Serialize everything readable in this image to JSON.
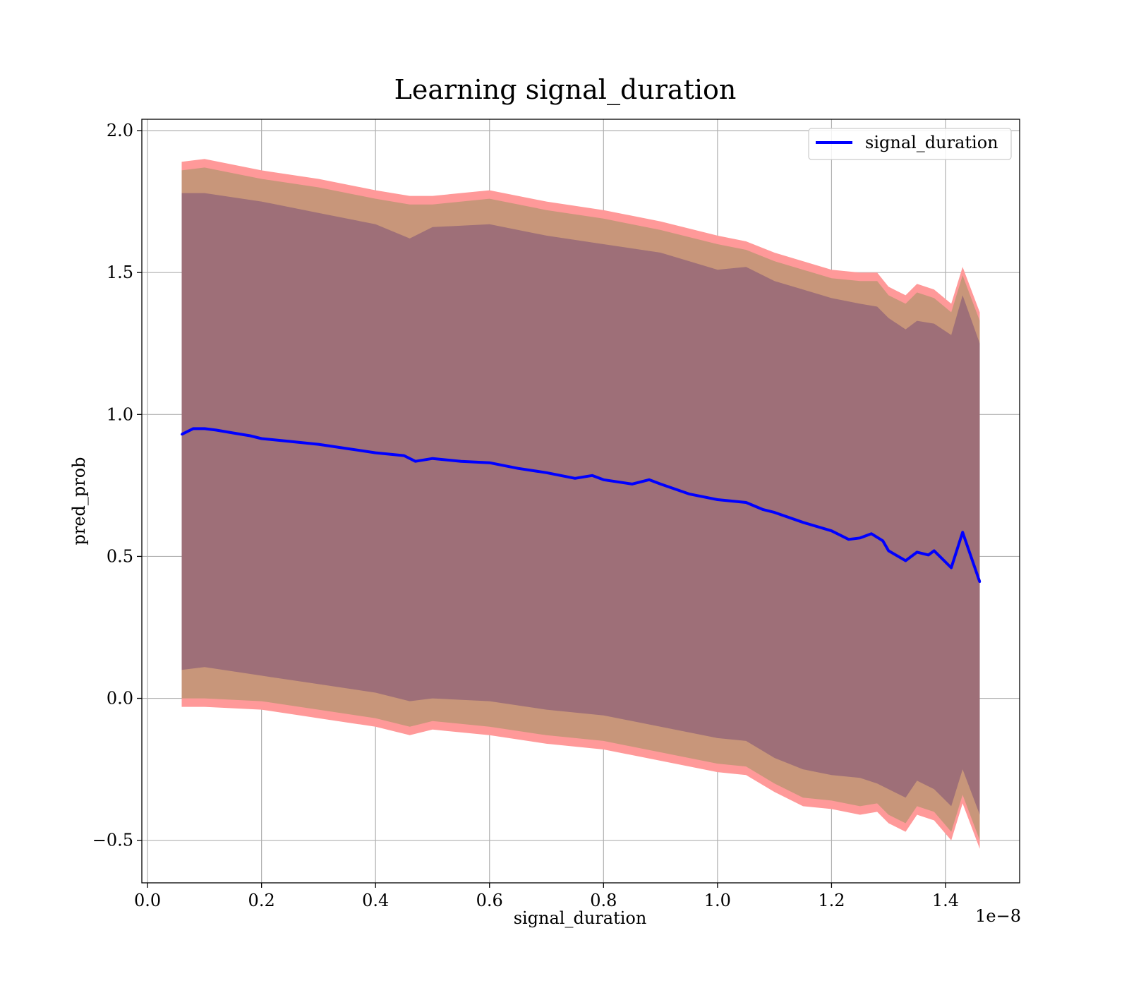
{
  "chart_data": {
    "type": "line",
    "title": "Learning signal_duration",
    "xlabel": "signal_duration",
    "ylabel": "pred_prob",
    "x_offset_label": "1e−8",
    "xlim": [
      -0.01,
      1.53
    ],
    "ylim": [
      -0.65,
      2.04
    ],
    "xticks": [
      0.0,
      0.2,
      0.4,
      0.6,
      0.8,
      1.0,
      1.2,
      1.4
    ],
    "xtick_labels": [
      "0.0",
      "0.2",
      "0.4",
      "0.6",
      "0.8",
      "1.0",
      "1.2",
      "1.4"
    ],
    "yticks": [
      -0.5,
      0.0,
      0.5,
      1.0,
      1.5,
      2.0
    ],
    "ytick_labels": [
      "−0.5",
      "0.0",
      "0.5",
      "1.0",
      "1.5",
      "2.0"
    ],
    "grid": true,
    "legend_position": "upper-right",
    "legend_label": "signal_duration",
    "colors": {
      "line": "#0000ff",
      "band_outer": "#ff9999",
      "band_middle": "#c8967a",
      "band_inner": "#9e6f78"
    },
    "series": [
      {
        "name": "signal_duration",
        "x": [
          0.06,
          0.08,
          0.1,
          0.12,
          0.15,
          0.18,
          0.2,
          0.25,
          0.3,
          0.35,
          0.4,
          0.45,
          0.47,
          0.5,
          0.55,
          0.6,
          0.65,
          0.7,
          0.75,
          0.78,
          0.8,
          0.85,
          0.88,
          0.9,
          0.95,
          1.0,
          1.05,
          1.08,
          1.1,
          1.15,
          1.2,
          1.23,
          1.25,
          1.27,
          1.29,
          1.3,
          1.33,
          1.35,
          1.37,
          1.38,
          1.41,
          1.43,
          1.46
        ],
        "y": [
          0.93,
          0.95,
          0.95,
          0.945,
          0.935,
          0.925,
          0.915,
          0.905,
          0.895,
          0.88,
          0.865,
          0.855,
          0.835,
          0.845,
          0.835,
          0.83,
          0.81,
          0.795,
          0.775,
          0.785,
          0.77,
          0.755,
          0.77,
          0.755,
          0.72,
          0.7,
          0.69,
          0.665,
          0.655,
          0.62,
          0.59,
          0.56,
          0.565,
          0.58,
          0.555,
          0.52,
          0.485,
          0.515,
          0.505,
          0.52,
          0.46,
          0.585,
          0.41
        ]
      }
    ],
    "bands": [
      {
        "name": "outer",
        "x": [
          0.06,
          0.1,
          0.2,
          0.3,
          0.4,
          0.46,
          0.5,
          0.6,
          0.7,
          0.8,
          0.9,
          1.0,
          1.05,
          1.1,
          1.15,
          1.2,
          1.25,
          1.28,
          1.3,
          1.33,
          1.35,
          1.38,
          1.41,
          1.43,
          1.46
        ],
        "upper": [
          1.89,
          1.9,
          1.86,
          1.83,
          1.79,
          1.77,
          1.77,
          1.79,
          1.75,
          1.72,
          1.68,
          1.63,
          1.61,
          1.57,
          1.54,
          1.51,
          1.5,
          1.5,
          1.45,
          1.42,
          1.46,
          1.44,
          1.39,
          1.52,
          1.36
        ],
        "lower": [
          -0.03,
          -0.03,
          -0.04,
          -0.07,
          -0.1,
          -0.13,
          -0.11,
          -0.13,
          -0.16,
          -0.18,
          -0.22,
          -0.26,
          -0.27,
          -0.33,
          -0.38,
          -0.39,
          -0.41,
          -0.4,
          -0.44,
          -0.47,
          -0.41,
          -0.43,
          -0.5,
          -0.37,
          -0.53
        ]
      },
      {
        "name": "middle",
        "x": [
          0.06,
          0.1,
          0.2,
          0.3,
          0.4,
          0.46,
          0.5,
          0.6,
          0.7,
          0.8,
          0.9,
          1.0,
          1.05,
          1.1,
          1.15,
          1.2,
          1.25,
          1.28,
          1.3,
          1.33,
          1.35,
          1.38,
          1.41,
          1.43,
          1.46
        ],
        "upper": [
          1.86,
          1.87,
          1.83,
          1.8,
          1.76,
          1.74,
          1.74,
          1.76,
          1.72,
          1.69,
          1.65,
          1.6,
          1.58,
          1.54,
          1.51,
          1.48,
          1.47,
          1.47,
          1.42,
          1.39,
          1.43,
          1.41,
          1.36,
          1.49,
          1.33
        ],
        "lower": [
          0.0,
          0.0,
          -0.01,
          -0.04,
          -0.07,
          -0.1,
          -0.08,
          -0.1,
          -0.13,
          -0.15,
          -0.19,
          -0.23,
          -0.24,
          -0.3,
          -0.35,
          -0.36,
          -0.38,
          -0.37,
          -0.41,
          -0.44,
          -0.38,
          -0.4,
          -0.47,
          -0.34,
          -0.5
        ]
      },
      {
        "name": "inner",
        "x": [
          0.06,
          0.1,
          0.2,
          0.3,
          0.4,
          0.46,
          0.5,
          0.6,
          0.7,
          0.8,
          0.9,
          1.0,
          1.05,
          1.1,
          1.15,
          1.2,
          1.25,
          1.28,
          1.3,
          1.33,
          1.35,
          1.38,
          1.41,
          1.43,
          1.46
        ],
        "upper": [
          1.78,
          1.78,
          1.75,
          1.71,
          1.67,
          1.62,
          1.66,
          1.67,
          1.63,
          1.6,
          1.57,
          1.51,
          1.52,
          1.47,
          1.44,
          1.41,
          1.39,
          1.38,
          1.34,
          1.3,
          1.33,
          1.32,
          1.28,
          1.42,
          1.25
        ],
        "lower": [
          0.1,
          0.11,
          0.08,
          0.05,
          0.02,
          -0.01,
          0.0,
          -0.01,
          -0.04,
          -0.06,
          -0.1,
          -0.14,
          -0.15,
          -0.21,
          -0.25,
          -0.27,
          -0.28,
          -0.3,
          -0.32,
          -0.35,
          -0.29,
          -0.32,
          -0.38,
          -0.25,
          -0.41
        ]
      }
    ]
  }
}
